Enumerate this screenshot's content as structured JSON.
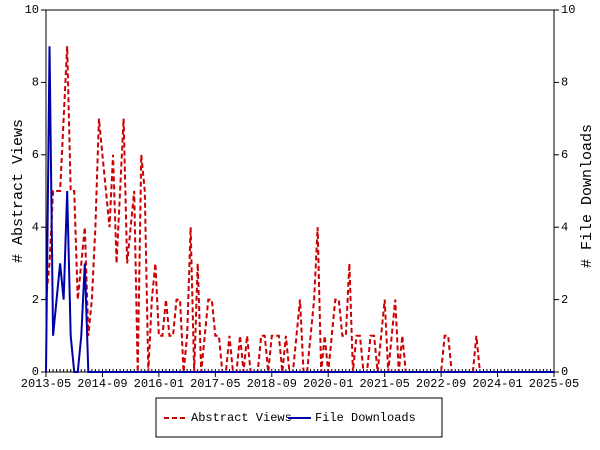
{
  "chart_data": {
    "type": "line",
    "x": [
      "2013-05",
      "2013-06",
      "2013-07",
      "2013-08",
      "2013-09",
      "2013-10",
      "2013-11",
      "2013-12",
      "2014-01",
      "2014-02",
      "2014-03",
      "2014-04",
      "2014-05",
      "2014-06",
      "2014-07",
      "2014-08",
      "2014-09",
      "2014-10",
      "2014-11",
      "2014-12",
      "2015-01",
      "2015-02",
      "2015-03",
      "2015-04",
      "2015-05",
      "2015-06",
      "2015-07",
      "2015-08",
      "2015-09",
      "2015-10",
      "2015-11",
      "2015-12",
      "2016-01",
      "2016-02",
      "2016-03",
      "2016-04",
      "2016-05",
      "2016-06",
      "2016-07",
      "2016-08",
      "2016-09",
      "2016-10",
      "2016-11",
      "2016-12",
      "2017-01",
      "2017-02",
      "2017-03",
      "2017-04",
      "2017-05",
      "2017-06",
      "2017-07",
      "2017-08",
      "2017-09",
      "2017-10",
      "2017-11",
      "2017-12",
      "2018-01",
      "2018-02",
      "2018-03",
      "2018-04",
      "2018-05",
      "2018-06",
      "2018-07",
      "2018-08",
      "2018-09",
      "2018-10",
      "2018-11",
      "2018-12",
      "2019-01",
      "2019-02",
      "2019-03",
      "2019-04",
      "2019-05",
      "2019-06",
      "2019-07",
      "2019-08",
      "2019-09",
      "2019-10",
      "2019-11",
      "2019-12",
      "2020-01",
      "2020-02",
      "2020-03",
      "2020-04",
      "2020-05",
      "2020-06",
      "2020-07",
      "2020-08",
      "2020-09",
      "2020-10",
      "2020-11",
      "2020-12",
      "2021-01",
      "2021-02",
      "2021-03",
      "2021-04",
      "2021-05",
      "2021-06",
      "2021-07",
      "2021-08",
      "2021-09",
      "2021-10",
      "2021-11",
      "2021-12",
      "2022-01",
      "2022-02",
      "2022-03",
      "2022-04",
      "2022-05",
      "2022-06",
      "2022-07",
      "2022-08",
      "2022-09",
      "2022-10",
      "2022-11",
      "2022-12",
      "2023-01",
      "2023-02",
      "2023-03",
      "2023-04",
      "2023-05",
      "2023-06",
      "2023-07",
      "2023-08",
      "2023-09",
      "2023-10",
      "2023-11",
      "2023-12",
      "2024-01",
      "2024-02",
      "2024-03",
      "2024-04",
      "2024-05",
      "2024-06",
      "2024-07",
      "2024-08",
      "2024-09",
      "2024-10",
      "2024-11",
      "2024-12",
      "2025-01",
      "2025-02",
      "2025-03",
      "2025-04",
      "2025-05"
    ],
    "xticks": [
      "2013-05",
      "2014-09",
      "2016-01",
      "2017-05",
      "2018-09",
      "2020-01",
      "2021-05",
      "2022-09",
      "2024-01",
      "2025-05"
    ],
    "ylabel": "# Abstract Views",
    "y2label": "# File Downloads",
    "ylim": [
      0,
      10
    ],
    "yticks": [
      0,
      2,
      4,
      6,
      8,
      10
    ],
    "y2lim": [
      0,
      10
    ],
    "y2ticks": [
      0,
      2,
      4,
      6,
      8,
      10
    ],
    "series": [
      {
        "name": "Abstract Views",
        "color": "#cc0000",
        "dashed": true,
        "values": [
          2,
          3,
          5,
          5,
          5,
          7,
          9,
          5,
          5,
          2,
          3,
          4,
          1,
          2,
          4,
          7,
          6,
          5,
          4,
          6,
          3,
          5,
          7,
          3,
          4,
          5,
          0,
          6,
          5,
          0,
          2,
          3,
          1,
          1,
          2,
          1,
          1,
          2,
          2,
          0,
          1,
          4,
          0,
          3,
          0,
          1,
          2,
          2,
          1,
          1,
          0,
          0,
          1,
          0,
          0,
          1,
          0,
          1,
          0,
          0,
          0,
          1,
          1,
          0,
          1,
          1,
          1,
          0,
          1,
          0,
          0,
          1,
          2,
          0,
          0,
          1,
          2,
          4,
          0,
          1,
          0,
          1,
          2,
          2,
          1,
          1,
          3,
          0,
          1,
          1,
          0,
          0,
          1,
          1,
          0,
          1,
          2,
          0,
          1,
          2,
          0,
          1,
          0,
          0,
          0,
          0,
          0,
          0,
          0,
          0,
          0,
          0,
          0,
          1,
          1,
          0,
          0,
          0,
          0,
          0,
          0,
          0,
          1,
          0,
          0,
          0,
          0,
          0,
          0,
          0,
          0,
          0,
          0,
          0,
          0,
          0,
          0,
          0,
          0,
          0,
          0,
          0,
          0,
          0,
          0
        ]
      },
      {
        "name": "File Downloads",
        "color": "#0000aa",
        "dashed": false,
        "axis": "y2",
        "values": [
          0,
          9,
          1,
          2,
          3,
          2,
          5,
          1,
          0,
          0,
          1,
          3,
          0,
          0,
          0,
          0,
          0,
          0,
          0,
          0,
          0,
          0,
          0,
          0,
          0,
          0,
          0,
          0,
          0,
          0,
          0,
          0,
          0,
          0,
          0,
          0,
          0,
          0,
          0,
          0,
          0,
          0,
          0,
          0,
          0,
          0,
          0,
          0,
          0,
          0,
          0,
          0,
          0,
          0,
          0,
          0,
          0,
          0,
          0,
          0,
          0,
          0,
          0,
          0,
          0,
          0,
          0,
          0,
          0,
          0,
          0,
          0,
          0,
          0,
          0,
          0,
          0,
          0,
          0,
          0,
          0,
          0,
          0,
          0,
          0,
          0,
          0,
          0,
          0,
          0,
          0,
          0,
          0,
          0,
          0,
          0,
          0,
          0,
          0,
          0,
          0,
          0,
          0,
          0,
          0,
          0,
          0,
          0,
          0,
          0,
          0,
          0,
          0,
          0,
          0,
          0,
          0,
          0,
          0,
          0,
          0,
          0,
          0,
          0,
          0,
          0,
          0,
          0,
          0,
          0,
          0,
          0,
          0,
          0,
          0,
          0,
          0,
          0,
          0,
          0,
          0,
          0,
          0,
          0,
          0
        ]
      }
    ],
    "legend": "bottom"
  }
}
